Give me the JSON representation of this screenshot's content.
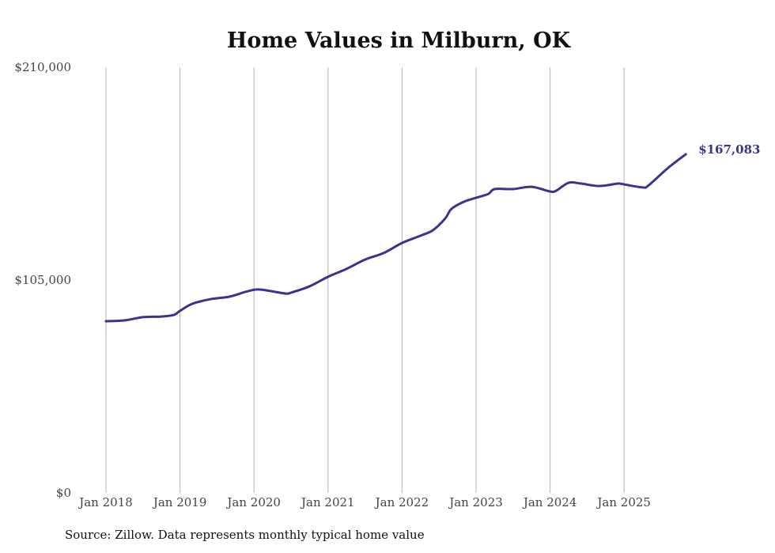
{
  "chart_data": {
    "type": "line",
    "title": "Home Values in Milburn, OK",
    "xlabel": "",
    "ylabel": "",
    "ylim": [
      0,
      210000
    ],
    "y_ticks": [
      0,
      105000,
      210000
    ],
    "y_tick_labels": [
      "$0",
      "$105,000",
      "$210,000"
    ],
    "x_ticks": [
      "2018-01",
      "2019-01",
      "2020-01",
      "2021-01",
      "2022-01",
      "2023-01",
      "2024-01",
      "2025-01"
    ],
    "x_tick_labels": [
      "Jan 2018",
      "Jan 2019",
      "Jan 2020",
      "Jan 2021",
      "Jan 2022",
      "Jan 2023",
      "Jan 2024",
      "Jan 2025"
    ],
    "grid": "vertical",
    "line_color": "#3a3491",
    "end_label": "$167,083",
    "series": [
      {
        "name": "Typical home value",
        "points": [
          [
            "2018-01",
            84700
          ],
          [
            "2018-04",
            85100
          ],
          [
            "2018-07",
            86700
          ],
          [
            "2018-10",
            87000
          ],
          [
            "2018-12",
            87800
          ],
          [
            "2019-01",
            89800
          ],
          [
            "2019-03",
            93300
          ],
          [
            "2019-06",
            95600
          ],
          [
            "2019-09",
            96800
          ],
          [
            "2019-12",
            99500
          ],
          [
            "2020-02",
            100300
          ],
          [
            "2020-06",
            98400
          ],
          [
            "2020-07",
            98800
          ],
          [
            "2020-10",
            101900
          ],
          [
            "2021-01",
            106600
          ],
          [
            "2021-04",
            110500
          ],
          [
            "2021-07",
            115100
          ],
          [
            "2021-10",
            118300
          ],
          [
            "2022-01",
            123300
          ],
          [
            "2022-04",
            126900
          ],
          [
            "2022-06",
            129600
          ],
          [
            "2022-08",
            135400
          ],
          [
            "2022-09",
            140100
          ],
          [
            "2022-11",
            143600
          ],
          [
            "2023-01",
            145600
          ],
          [
            "2023-03",
            147500
          ],
          [
            "2023-04",
            149900
          ],
          [
            "2023-07",
            149900
          ],
          [
            "2023-10",
            151000
          ],
          [
            "2024-01",
            148700
          ],
          [
            "2024-02",
            149100
          ],
          [
            "2024-04",
            153000
          ],
          [
            "2024-06",
            152600
          ],
          [
            "2024-09",
            151400
          ],
          [
            "2024-12",
            152600
          ],
          [
            "2025-01",
            152200
          ],
          [
            "2025-04",
            150700
          ],
          [
            "2025-05",
            151800
          ],
          [
            "2025-08",
            160000
          ],
          [
            "2025-11",
            167083
          ]
        ]
      }
    ]
  },
  "source": "Source: Zillow. Data represents monthly typical home value"
}
